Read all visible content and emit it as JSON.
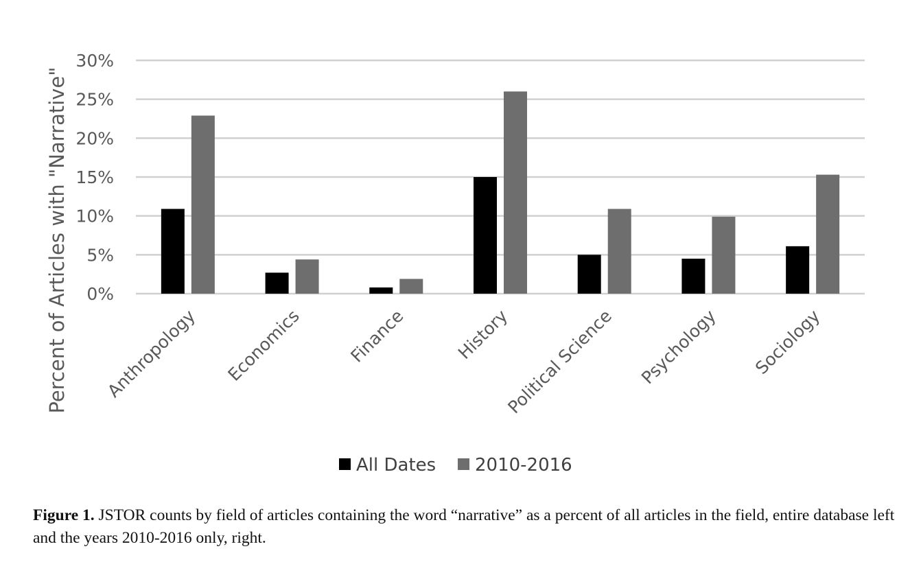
{
  "chart_data": {
    "type": "bar",
    "categories": [
      "Anthropology",
      "Economics",
      "Finance",
      "History",
      "Political Science",
      "Psychology",
      "Sociology"
    ],
    "series": [
      {
        "name": "All Dates",
        "values": [
          10.9,
          2.7,
          0.8,
          15.0,
          5.0,
          4.5,
          6.1
        ],
        "color": "#000000"
      },
      {
        "name": "2010-2016",
        "values": [
          22.9,
          4.4,
          1.9,
          26.0,
          10.9,
          9.9,
          15.3
        ],
        "color": "#6e6e6e"
      }
    ],
    "ylabel": "Percent of Articles with \"Narrative\"",
    "xlabel": "",
    "ylim": [
      0,
      30
    ],
    "yticks": [
      "0%",
      "5%",
      "10%",
      "15%",
      "20%",
      "25%",
      "30%"
    ],
    "grid": true,
    "legend": "bottom"
  },
  "caption": {
    "label": "Figure 1.",
    "text": " JSTOR counts by field of articles containing the word “narrative” as a percent of all articles in the field, entire database left and the years 2010-2016 only, right."
  }
}
